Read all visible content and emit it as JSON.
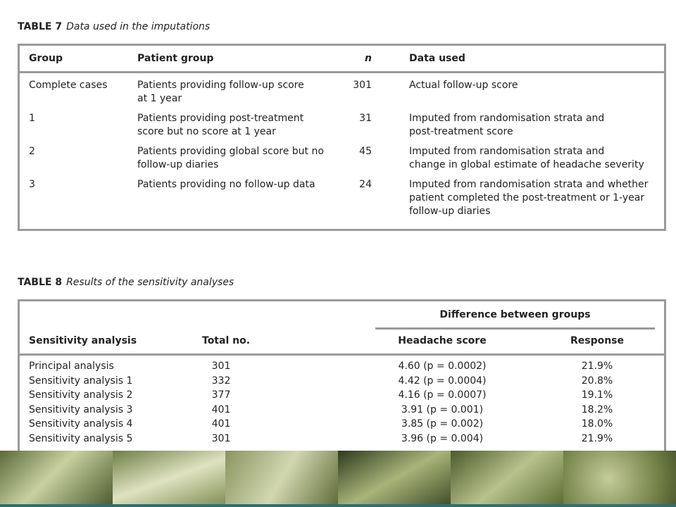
{
  "table7": {
    "label": "TABLE 7",
    "caption": "Data used in the imputations",
    "headers": [
      "Group",
      "Patient group",
      "n",
      "Data used"
    ],
    "rows": [
      [
        "Complete cases",
        [
          "Patients providing follow-up score",
          "at 1 year"
        ],
        "301",
        [
          "Actual follow-up score"
        ]
      ],
      [
        "1",
        [
          "Patients providing post-treatment",
          "score but no score at 1 year"
        ],
        "31",
        [
          "Imputed from randomisation strata and",
          "post-treatment score"
        ]
      ],
      [
        "2",
        [
          "Patients providing global score but no",
          "follow-up diaries"
        ],
        "45",
        [
          "Imputed from randomisation strata and",
          "change in global estimate of headache severity"
        ]
      ],
      [
        "3",
        [
          "Patients providing no follow-up data"
        ],
        "24",
        [
          "Imputed from randomisation strata and whether",
          "patient completed the post-treatment or 1-year",
          "follow-up diaries"
        ]
      ]
    ]
  },
  "table8": {
    "label": "TABLE 8",
    "caption": "Results of the sensitivity analyses",
    "group_header": "Difference between groups",
    "headers": [
      "Sensitivity analysis",
      "Total no.",
      "Headache score",
      "Response"
    ],
    "rows": [
      [
        "Principal analysis",
        "301",
        "4.60 (p = 0.0002)",
        "21.9%"
      ],
      [
        "Sensitivity analysis 1",
        "332",
        "4.42 (p = 0.0004)",
        "20.8%"
      ],
      [
        "Sensitivity analysis 2",
        "377",
        "4.16 (p = 0.0007)",
        "19.1%"
      ],
      [
        "Sensitivity analysis 3",
        "401",
        "3.91 (p = 0.001)",
        "18.2%"
      ],
      [
        "Sensitivity analysis 4",
        "401",
        "3.85 (p = 0.002)",
        "18.0%"
      ],
      [
        "Sensitivity analysis 5",
        "301",
        "3.96 (p = 0.004)",
        "21.9%"
      ]
    ]
  }
}
